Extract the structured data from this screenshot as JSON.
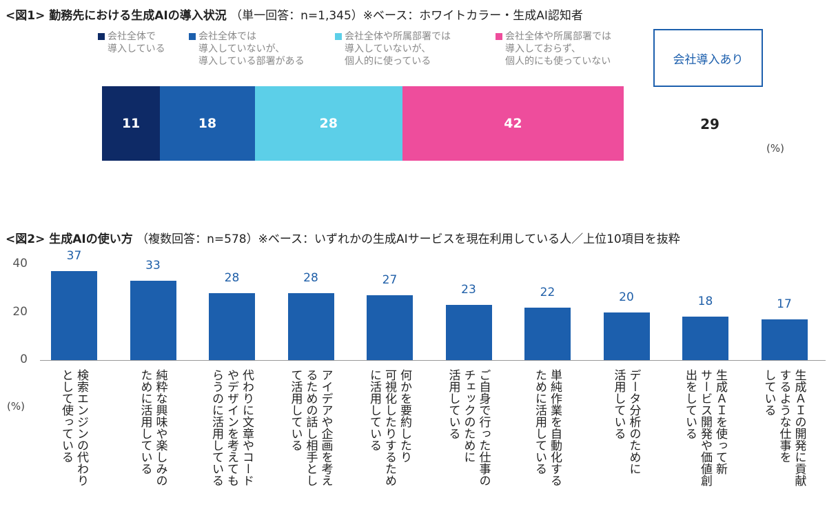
{
  "chart_data": [
    {
      "type": "bar",
      "orientation": "horizontal-stacked",
      "title": "<図1> 勤務先における生成AIの導入状況",
      "subtitle": "（単一回答：n=1,345）※ベース：ホワイトカラー・生成AI認知者",
      "series": [
        {
          "name": "会社全体で\n導入している",
          "value": 11,
          "color": "#0e2a66"
        },
        {
          "name": "会社全体では\n導入していないが、\n導入している部署がある",
          "value": 18,
          "color": "#1c5fad"
        },
        {
          "name": "会社全体や所属部署では\n導入していないが、\n個人的に使っている",
          "value": 28,
          "color": "#5ccfe8"
        },
        {
          "name": "会社全体や所属部署では\n導入しておらず、\n個人的にも使っていない",
          "value": 42,
          "color": "#ee4d9c"
        }
      ],
      "summary_label": "会社導入あり",
      "summary_value": 29,
      "unit": "(%)"
    },
    {
      "type": "bar",
      "title": "<図2> 生成AIの使い方",
      "subtitle": "（複数回答：n=578）※ベース：いずれかの生成AIサービスを現在利用している人／上位10項目を抜粋",
      "ylim": [
        0,
        40
      ],
      "yticks": [
        "0",
        "20",
        "40"
      ],
      "ylabel": "(%)",
      "color": "#1c5fad",
      "categories": [
        "検索エンジンの代わり\nとして使っている",
        "純粋な興味や楽しみの\nために活用している",
        "代わりに文章やコード\nやデザインを考えても\nらうのに活用している",
        "アイデアや企画を考え\nるための話し相手とし\nて活用している",
        "何かを要約したり\n可視化したりするため\nに活用している",
        "ご自身で行った仕事の\nチェックのために\n活用している",
        "単純作業を自動化する\nために活用している",
        "データ分析のために\n活用している",
        "生成ＡＩを使って新\nサービス開発や価値創\n出をしている",
        "生成ＡＩの開発に貢献\nするような仕事を\nしている"
      ],
      "values": [
        37,
        33,
        28,
        28,
        27,
        23,
        22,
        20,
        18,
        17
      ]
    }
  ]
}
